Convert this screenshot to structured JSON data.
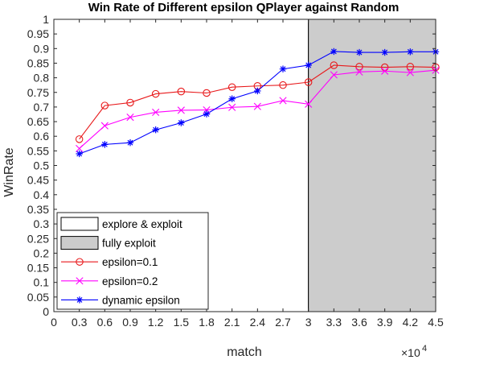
{
  "chart_data": {
    "type": "line",
    "title": "Win Rate of Different epsilon QPlayer against Random",
    "xlabel": "match",
    "ylabel": "WinRate",
    "x_multiplier": "×10",
    "x_multiplier_exp": "4",
    "xlim": [
      0,
      45000
    ],
    "ylim": [
      0,
      1
    ],
    "x_tick_values": [
      0,
      3000,
      6000,
      9000,
      12000,
      15000,
      18000,
      21000,
      24000,
      27000,
      30000,
      33000,
      36000,
      39000,
      42000,
      45000
    ],
    "x_tick_labels": [
      "0",
      "0.3",
      "0.6",
      "0.9",
      "1.2",
      "1.5",
      "1.8",
      "2.1",
      "2.4",
      "2.7",
      "3",
      "3.3",
      "3.6",
      "3.9",
      "4.2",
      "4.5"
    ],
    "y_tick_values": [
      0,
      0.05,
      0.1,
      0.15,
      0.2,
      0.25,
      0.3,
      0.35,
      0.4,
      0.45,
      0.5,
      0.55,
      0.6,
      0.65,
      0.7,
      0.75,
      0.8,
      0.85,
      0.9,
      0.95,
      1
    ],
    "y_tick_labels": [
      "0",
      "0.05",
      "0.1",
      "0.15",
      "0.2",
      "0.25",
      "0.3",
      "0.35",
      "0.4",
      "0.45",
      "0.5",
      "0.55",
      "0.6",
      "0.65",
      "0.7",
      "0.75",
      "0.8",
      "0.85",
      "0.9",
      "0.95",
      "1"
    ],
    "grid": false,
    "regions": [
      {
        "name": "explore & exploit",
        "x_range": [
          0,
          30000
        ],
        "color": "#ffffff"
      },
      {
        "name": "fully exploit",
        "x_range": [
          30000,
          45000
        ],
        "color": "#cccccc"
      }
    ],
    "x": [
      3000,
      6000,
      9000,
      12000,
      15000,
      18000,
      21000,
      24000,
      27000,
      30000,
      33000,
      36000,
      39000,
      42000,
      45000
    ],
    "series": [
      {
        "name": "epsilon=0.1",
        "color": "#e8191b",
        "marker": "circle",
        "values": [
          0.59,
          0.705,
          0.715,
          0.745,
          0.753,
          0.748,
          0.768,
          0.772,
          0.775,
          0.785,
          0.843,
          0.838,
          0.836,
          0.838,
          0.836
        ]
      },
      {
        "name": "epsilon=0.2",
        "color": "#ff00ff",
        "marker": "x",
        "values": [
          0.558,
          0.636,
          0.665,
          0.682,
          0.689,
          0.69,
          0.699,
          0.702,
          0.722,
          0.71,
          0.81,
          0.82,
          0.823,
          0.818,
          0.826
        ]
      },
      {
        "name": "dynamic epsilon",
        "color": "#0000ff",
        "marker": "star",
        "values": [
          0.54,
          0.572,
          0.578,
          0.622,
          0.646,
          0.676,
          0.728,
          0.755,
          0.83,
          0.843,
          0.89,
          0.887,
          0.887,
          0.889,
          0.889
        ]
      }
    ],
    "legend_position": "bottom-left"
  }
}
